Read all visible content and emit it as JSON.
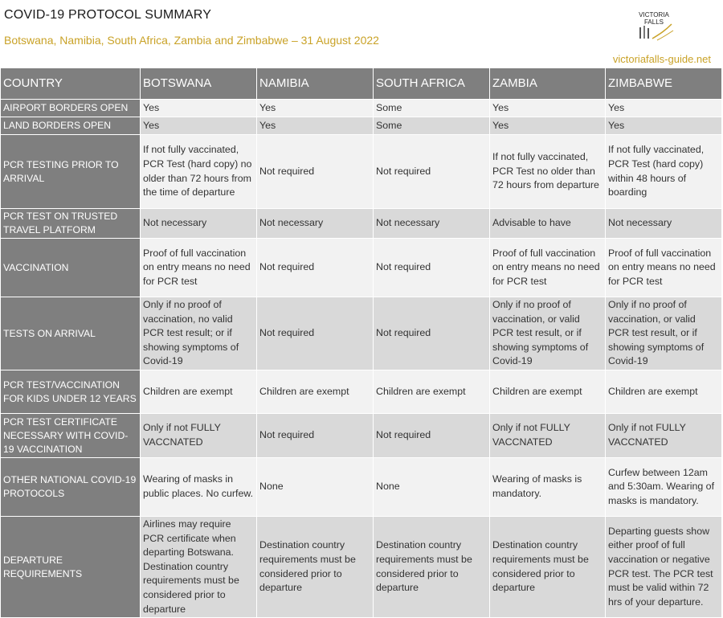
{
  "header": {
    "title": "COVID-19 PROTOCOL SUMMARY",
    "subtitle": "Botswana, Namibia, South Africa, Zambia and Zimbabwe – 31 August 2022",
    "logo_text": "VICTORIA FALLS",
    "site": "victoriafalls-guide.net"
  },
  "colors": {
    "header_bg": "#7f7f7f",
    "accent": "#c9a227",
    "row_light": "#f2f2f2",
    "row_dark": "#d9d9d9"
  },
  "table": {
    "columns": [
      "COUNTRY",
      "BOTSWANA",
      "NAMIBIA",
      "SOUTH AFRICA",
      "ZAMBIA",
      "ZIMBABWE"
    ],
    "rows": [
      {
        "label": "AIRPORT BORDERS OPEN",
        "values": [
          "Yes",
          "Yes",
          "Some",
          "Yes",
          "Yes"
        ]
      },
      {
        "label": "LAND BORDERS OPEN",
        "values": [
          "Yes",
          "Yes",
          "Some",
          "Yes",
          "Yes"
        ]
      },
      {
        "label": "PCR TESTING PRIOR TO ARRIVAL",
        "values": [
          "If not fully vaccinated, PCR Test (hard copy) no older than 72 hours from the time of departure",
          "Not required",
          "Not required",
          "If not fully vaccinated, PCR Test no older than 72 hours from departure",
          "If not fully vaccinated, PCR Test (hard copy) within 48 hours of boarding"
        ]
      },
      {
        "label": "PCR TEST ON TRUSTED TRAVEL PLATFORM",
        "values": [
          "Not necessary",
          "Not necessary",
          "Not necessary",
          "Advisable to have",
          "Not necessary"
        ]
      },
      {
        "label": "VACCINATION",
        "values": [
          "Proof of full vaccination on entry means no need for PCR test",
          "Not required",
          "Not required",
          "Proof of full vaccination on entry means no need for PCR test",
          "Proof of full vaccination on entry means no need for PCR test"
        ]
      },
      {
        "label": "TESTS ON ARRIVAL",
        "values": [
          "Only if no proof of vaccination, no valid PCR test result; or if showing symptoms of Covid-19",
          "Not required",
          "Not required",
          "Only if no proof of vaccination, or valid PCR test result, or if showing symptoms of Covid-19",
          "Only if no proof of vaccination, or valid PCR test result, or if showing symptoms of Covid-19"
        ]
      },
      {
        "label": "PCR TEST/VACCINATION FOR KIDS UNDER 12 YEARS",
        "values": [
          "Children are exempt",
          "Children are exempt",
          "Children are exempt",
          "Children are exempt",
          "Children are exempt"
        ]
      },
      {
        "label": "PCR TEST CERTIFICATE NECESSARY WITH COVID-19 VACCINATION",
        "values": [
          "Only if not FULLY VACCNATED",
          "Not required",
          "Not required",
          "Only if not FULLY VACCNATED",
          "Only if not FULLY VACCNATED"
        ]
      },
      {
        "label": "OTHER NATIONAL COVID-19 PROTOCOLS",
        "values": [
          "Wearing of masks in public places. No curfew.",
          "None",
          "None",
          "Wearing of masks is mandatory.",
          "Curfew between 12am and 5:30am. Wearing of masks is mandatory."
        ]
      },
      {
        "label": "DEPARTURE REQUIREMENTS",
        "values": [
          "Airlines may require PCR certificate when departing Botswana. Destination country requirements must be considered prior to departure",
          "Destination country requirements must be considered prior to departure",
          "Destination country requirements must be considered prior to departure",
          "Destination country requirements must be considered prior to departure",
          "Departing guests show either proof of full vaccination or negative PCR test. The PCR test must be valid within 72 hrs of your departure."
        ]
      }
    ]
  }
}
